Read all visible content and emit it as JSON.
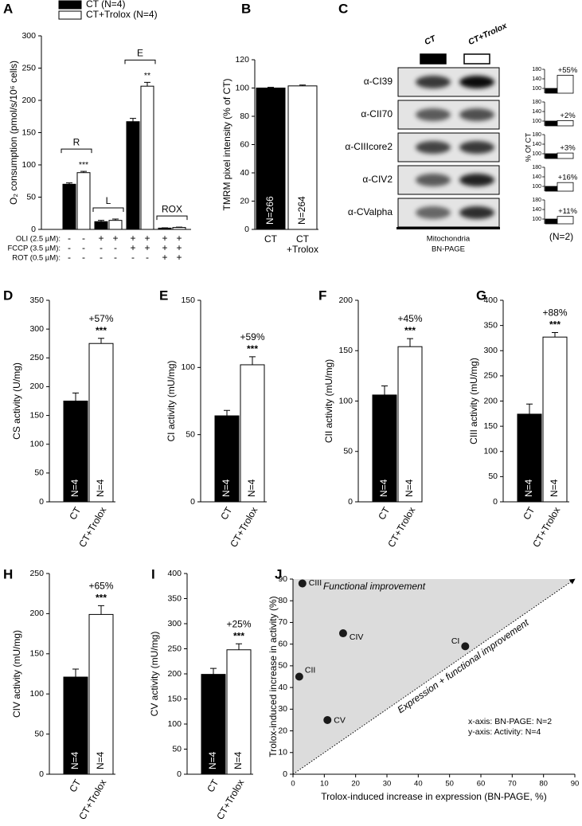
{
  "chart_data": [
    {
      "type": "bar",
      "panel_label": "A",
      "ylabel": "O₂ consumption (pmol/s/10⁶ cells)",
      "categories": [
        "R",
        "L",
        "E",
        "ROX"
      ],
      "series": [
        {
          "name": "CT (N=4)",
          "color": "#000000",
          "values": [
            70,
            12,
            167,
            2
          ],
          "errors": [
            2,
            2,
            5,
            0.5
          ]
        },
        {
          "name": "CT+Trolox (N=4)",
          "color": "#ffffff",
          "values": [
            88,
            14,
            222,
            3
          ],
          "errors": [
            2,
            2,
            6,
            0.5
          ]
        }
      ],
      "significance": [
        "***",
        null,
        "**",
        null
      ],
      "treatments": [
        {
          "label": "OLI (2.5 µM):",
          "signs": [
            "-",
            "-",
            "+",
            "+",
            "+",
            "+",
            "+",
            "+"
          ]
        },
        {
          "label": "FCCP (3.5 µM):",
          "signs": [
            "-",
            "-",
            "-",
            "-",
            "+",
            "+",
            "+",
            "+"
          ]
        },
        {
          "label": "ROT (0.5 µM):",
          "signs": [
            "-",
            "-",
            "-",
            "-",
            "-",
            "-",
            "+",
            "+"
          ]
        }
      ],
      "ylim": [
        0,
        300
      ],
      "yticks": [
        0,
        50,
        100,
        150,
        200,
        250,
        300
      ]
    },
    {
      "type": "bar",
      "panel_label": "B",
      "ylabel": "TMRM pixel intensity (% of CT)",
      "categories": [
        [
          "CT"
        ],
        [
          "CT",
          "+Trolox"
        ]
      ],
      "values": [
        100,
        101.5
      ],
      "errors": [
        0.5,
        0.6
      ],
      "colors": [
        "#000000",
        "#ffffff"
      ],
      "n_labels": [
        "N=266",
        "N=264"
      ],
      "ylim": [
        0,
        120
      ],
      "yticks": [
        0,
        20,
        40,
        60,
        80,
        100,
        120
      ]
    },
    {
      "type": "blot",
      "panel_label": "C",
      "lanes": [
        "CT",
        "CT+Trolox"
      ],
      "antibodies": [
        "α-CI39",
        "α-CII70",
        "α-CIIIcore2",
        "α-CIV2",
        "α-CValpha"
      ],
      "caption": [
        "Mitochondria",
        "BN-PAGE"
      ],
      "ylabel": "% Of CT",
      "ylim": [
        80,
        180
      ],
      "yticks": [
        100,
        140,
        180
      ],
      "series": [
        {
          "color": "#000000",
          "values": [
            100,
            100,
            100,
            100,
            100
          ]
        },
        {
          "color": "#ffffff",
          "values": [
            155,
            102,
            103,
            116,
            111
          ]
        }
      ],
      "change_labels": [
        "+55%",
        "+2%",
        "+3%",
        "+16%",
        "+11%"
      ],
      "n_label": "(N=2)"
    },
    {
      "type": "bar",
      "panel_label": "D",
      "ylabel": "CS activity (U/mg)",
      "categories": [
        "CT",
        "CT+Trolox"
      ],
      "values": [
        175,
        275
      ],
      "errors": [
        14,
        9
      ],
      "colors": [
        "#000000",
        "#ffffff"
      ],
      "n_labels": [
        "N=4",
        "N=4"
      ],
      "change_label": "+57%",
      "significance": "***",
      "ylim": [
        0,
        350
      ],
      "yticks": [
        0,
        50,
        100,
        150,
        200,
        250,
        300,
        350
      ]
    },
    {
      "type": "bar",
      "panel_label": "E",
      "ylabel": "CI activity (mU/mg)",
      "categories": [
        "CT",
        "CT+Trolox"
      ],
      "values": [
        64,
        102
      ],
      "errors": [
        4,
        6
      ],
      "colors": [
        "#000000",
        "#ffffff"
      ],
      "n_labels": [
        "N=4",
        "N=4"
      ],
      "change_label": "+59%",
      "significance": "***",
      "ylim": [
        0,
        150
      ],
      "yticks": [
        0,
        50,
        100,
        150
      ]
    },
    {
      "type": "bar",
      "panel_label": "F",
      "ylabel": "CII activity (mU/mg)",
      "categories": [
        "CT",
        "CT+Trolox"
      ],
      "values": [
        106,
        154
      ],
      "errors": [
        9,
        8
      ],
      "colors": [
        "#000000",
        "#ffffff"
      ],
      "n_labels": [
        "N=4",
        "N=4"
      ],
      "change_label": "+45%",
      "significance": "***",
      "ylim": [
        0,
        200
      ],
      "yticks": [
        0,
        50,
        100,
        150,
        200
      ]
    },
    {
      "type": "bar",
      "panel_label": "G",
      "ylabel": "CIII activity (mU/mg)",
      "categories": [
        "CT",
        "CT+Trolox"
      ],
      "values": [
        174,
        327
      ],
      "errors": [
        20,
        9
      ],
      "colors": [
        "#000000",
        "#ffffff"
      ],
      "n_labels": [
        "N=4",
        "N=4"
      ],
      "change_label": "+88%",
      "significance": "***",
      "ylim": [
        0,
        400
      ],
      "yticks": [
        0,
        50,
        100,
        150,
        200,
        250,
        300,
        350,
        400
      ]
    },
    {
      "type": "bar",
      "panel_label": "H",
      "ylabel": "CIV activity (mU/mg)",
      "categories": [
        "CT",
        "CT+Trolox"
      ],
      "values": [
        121,
        199
      ],
      "errors": [
        10,
        11
      ],
      "colors": [
        "#000000",
        "#ffffff"
      ],
      "n_labels": [
        "N=4",
        "N=4"
      ],
      "change_label": "+65%",
      "significance": "***",
      "ylim": [
        0,
        250
      ],
      "yticks": [
        0,
        50,
        100,
        150,
        200,
        250
      ]
    },
    {
      "type": "bar",
      "panel_label": "I",
      "ylabel": "CV activity (mU/mg)",
      "categories": [
        "CT",
        "CT+Trolox"
      ],
      "values": [
        199,
        248
      ],
      "errors": [
        12,
        12
      ],
      "colors": [
        "#000000",
        "#ffffff"
      ],
      "n_labels": [
        "N=4",
        "N=4"
      ],
      "change_label": "+25%",
      "significance": "***",
      "ylim": [
        0,
        400
      ],
      "yticks": [
        0,
        50,
        100,
        150,
        200,
        250,
        300,
        350,
        400
      ]
    },
    {
      "type": "scatter",
      "panel_label": "J",
      "xlabel": "Trolox-induced increase in expression (BN-PAGE, %)",
      "ylabel": "Trolox-induced increase in activity (%)",
      "series": [
        {
          "color": "#1a1a1a",
          "labels": [
            "CI",
            "CII",
            "CIII",
            "CIV",
            "CV"
          ],
          "x": [
            55,
            2,
            3,
            16,
            11
          ],
          "values": [
            59,
            45,
            88,
            65,
            25
          ]
        }
      ],
      "annotations": [
        "Functional improvement",
        "Expression + functional improvement",
        "x-axis: BN-PAGE: N=2",
        "y-axis: Activity: N=4"
      ],
      "xlim": [
        0,
        90
      ],
      "ylim": [
        0,
        90
      ],
      "xticks": [
        0,
        10,
        20,
        30,
        40,
        50,
        60,
        70,
        80,
        90
      ],
      "yticks": [
        0,
        10,
        20,
        30,
        40,
        50,
        60,
        70,
        80,
        90
      ]
    }
  ]
}
